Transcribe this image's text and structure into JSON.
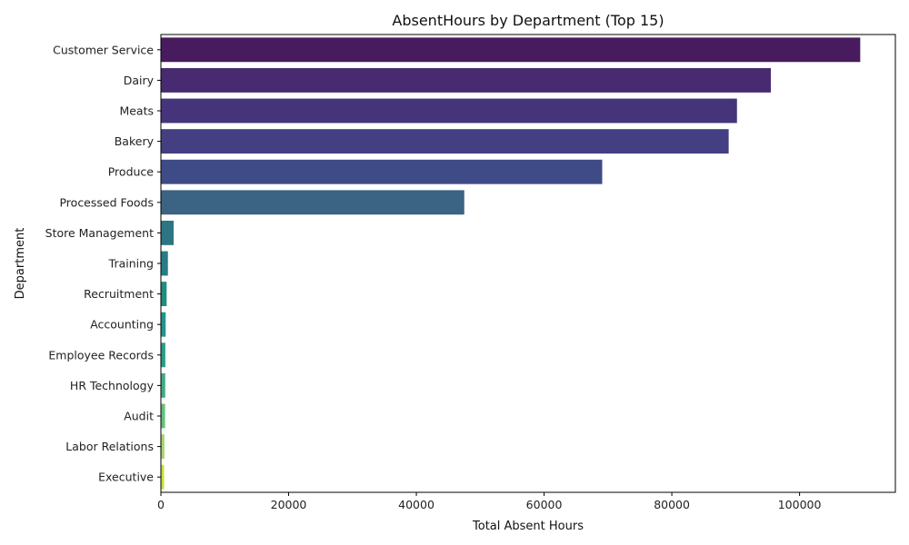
{
  "chart_data": {
    "type": "bar",
    "orientation": "horizontal",
    "title": "AbsentHours by Department (Top 15)",
    "xlabel": "Total Absent Hours",
    "ylabel": "Department",
    "xlim": [
      0,
      115000
    ],
    "xticks": [
      0,
      20000,
      40000,
      60000,
      80000,
      100000
    ],
    "xtick_labels": [
      "0",
      "20000",
      "40000",
      "60000",
      "80000",
      "100000"
    ],
    "grid": false,
    "palette": "viridis",
    "categories": [
      "Customer Service",
      "Dairy",
      "Meats",
      "Bakery",
      "Produce",
      "Processed Foods",
      "Store Management",
      "Training",
      "Recruitment",
      "Accounting",
      "Employee Records",
      "HR Technology",
      "Audit",
      "Labor Relations",
      "Executive"
    ],
    "values": [
      109500,
      95500,
      90200,
      88900,
      69100,
      47500,
      2000,
      1100,
      900,
      750,
      700,
      680,
      650,
      550,
      500
    ],
    "colors": [
      "#481b5f",
      "#472a6f",
      "#46347b",
      "#433f82",
      "#3f4b86",
      "#3b6383",
      "#2e7584",
      "#277d86",
      "#228b82",
      "#21948b",
      "#2a9e88",
      "#3fad82",
      "#64c07a",
      "#a5d66c",
      "#c7e03a"
    ]
  }
}
